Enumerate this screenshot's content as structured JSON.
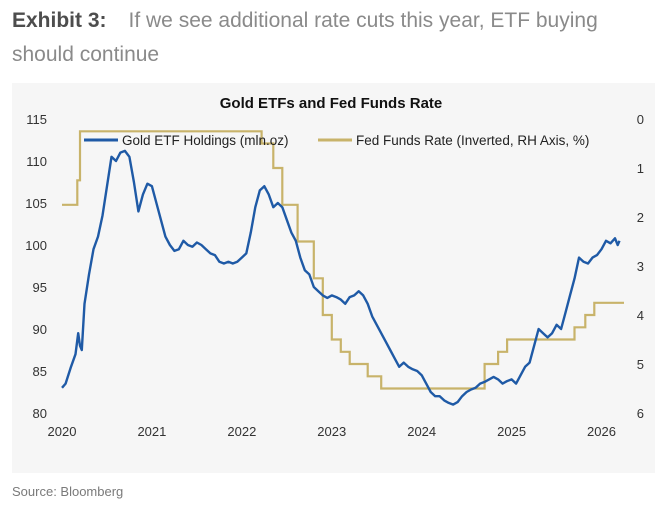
{
  "header": {
    "label": "Exhibit 3:",
    "title": "If we see additional rate cuts this year, ETF buying should continue"
  },
  "footer": {
    "source": "Source: Bloomberg"
  },
  "colors": {
    "gold_etf": "#1f5aa6",
    "fed_funds": "#c8b36a",
    "background": "#f6f6f6",
    "axis_text": "#333333"
  },
  "chart_data": {
    "type": "line",
    "title": "Gold ETFs and Fed Funds Rate",
    "xlabel": "",
    "ylabel": "",
    "xlim": [
      2020.0,
      2026.25
    ],
    "ylim_left": [
      80,
      115
    ],
    "ylim_right_inverted": [
      0,
      6
    ],
    "x_ticks": [
      "2020",
      "2021",
      "2022",
      "2023",
      "2024",
      "2025",
      "2026"
    ],
    "y_left_ticks": [
      "80",
      "85",
      "90",
      "95",
      "100",
      "105",
      "110",
      "115"
    ],
    "y_right_ticks": [
      "0",
      "1",
      "2",
      "3",
      "4",
      "5",
      "6"
    ],
    "legend": "top",
    "grid": false,
    "series": [
      {
        "name": "Gold ETF Holdings (mln.oz)",
        "axis": "left",
        "points": [
          [
            2020.0,
            83.0
          ],
          [
            2020.04,
            83.5
          ],
          [
            2020.1,
            85.5
          ],
          [
            2020.15,
            87.0
          ],
          [
            2020.18,
            89.5
          ],
          [
            2020.2,
            88.0
          ],
          [
            2020.22,
            87.5
          ],
          [
            2020.25,
            93.0
          ],
          [
            2020.3,
            96.5
          ],
          [
            2020.35,
            99.5
          ],
          [
            2020.4,
            101.0
          ],
          [
            2020.45,
            103.5
          ],
          [
            2020.5,
            107.0
          ],
          [
            2020.55,
            110.5
          ],
          [
            2020.6,
            110.0
          ],
          [
            2020.65,
            111.0
          ],
          [
            2020.7,
            111.2
          ],
          [
            2020.75,
            110.5
          ],
          [
            2020.8,
            107.5
          ],
          [
            2020.85,
            104.0
          ],
          [
            2020.9,
            106.0
          ],
          [
            2020.95,
            107.3
          ],
          [
            2021.0,
            107.0
          ],
          [
            2021.05,
            105.0
          ],
          [
            2021.1,
            103.0
          ],
          [
            2021.15,
            101.0
          ],
          [
            2021.2,
            100.0
          ],
          [
            2021.25,
            99.3
          ],
          [
            2021.3,
            99.5
          ],
          [
            2021.35,
            100.5
          ],
          [
            2021.4,
            100.0
          ],
          [
            2021.45,
            99.8
          ],
          [
            2021.5,
            100.3
          ],
          [
            2021.55,
            100.0
          ],
          [
            2021.6,
            99.5
          ],
          [
            2021.65,
            99.0
          ],
          [
            2021.7,
            98.8
          ],
          [
            2021.75,
            98.0
          ],
          [
            2021.8,
            97.8
          ],
          [
            2021.85,
            98.0
          ],
          [
            2021.9,
            97.8
          ],
          [
            2021.95,
            98.0
          ],
          [
            2022.0,
            98.5
          ],
          [
            2022.05,
            99.0
          ],
          [
            2022.1,
            101.5
          ],
          [
            2022.15,
            104.5
          ],
          [
            2022.2,
            106.5
          ],
          [
            2022.25,
            107.0
          ],
          [
            2022.3,
            106.0
          ],
          [
            2022.35,
            104.5
          ],
          [
            2022.4,
            105.0
          ],
          [
            2022.45,
            104.5
          ],
          [
            2022.5,
            103.0
          ],
          [
            2022.55,
            101.5
          ],
          [
            2022.6,
            100.5
          ],
          [
            2022.65,
            98.5
          ],
          [
            2022.7,
            97.0
          ],
          [
            2022.75,
            96.5
          ],
          [
            2022.8,
            95.0
          ],
          [
            2022.85,
            94.5
          ],
          [
            2022.9,
            94.0
          ],
          [
            2022.95,
            93.7
          ],
          [
            2023.0,
            94.0
          ],
          [
            2023.05,
            93.8
          ],
          [
            2023.1,
            93.5
          ],
          [
            2023.15,
            93.0
          ],
          [
            2023.2,
            93.8
          ],
          [
            2023.25,
            94.0
          ],
          [
            2023.3,
            94.5
          ],
          [
            2023.35,
            94.0
          ],
          [
            2023.4,
            93.0
          ],
          [
            2023.45,
            91.5
          ],
          [
            2023.5,
            90.5
          ],
          [
            2023.55,
            89.5
          ],
          [
            2023.6,
            88.5
          ],
          [
            2023.65,
            87.5
          ],
          [
            2023.7,
            86.5
          ],
          [
            2023.75,
            85.5
          ],
          [
            2023.8,
            86.0
          ],
          [
            2023.85,
            85.5
          ],
          [
            2023.9,
            85.2
          ],
          [
            2023.95,
            85.0
          ],
          [
            2024.0,
            84.5
          ],
          [
            2024.05,
            83.5
          ],
          [
            2024.1,
            82.5
          ],
          [
            2024.15,
            82.0
          ],
          [
            2024.2,
            82.0
          ],
          [
            2024.25,
            81.5
          ],
          [
            2024.3,
            81.2
          ],
          [
            2024.35,
            81.0
          ],
          [
            2024.4,
            81.3
          ],
          [
            2024.45,
            82.0
          ],
          [
            2024.5,
            82.5
          ],
          [
            2024.55,
            82.8
          ],
          [
            2024.6,
            83.0
          ],
          [
            2024.65,
            83.5
          ],
          [
            2024.7,
            83.7
          ],
          [
            2024.75,
            84.0
          ],
          [
            2024.8,
            84.3
          ],
          [
            2024.85,
            84.0
          ],
          [
            2024.9,
            83.5
          ],
          [
            2024.95,
            83.8
          ],
          [
            2025.0,
            84.0
          ],
          [
            2025.05,
            83.5
          ],
          [
            2025.1,
            84.5
          ],
          [
            2025.15,
            85.5
          ],
          [
            2025.2,
            86.0
          ],
          [
            2025.25,
            88.0
          ],
          [
            2025.3,
            90.0
          ],
          [
            2025.35,
            89.5
          ],
          [
            2025.4,
            89.0
          ],
          [
            2025.45,
            89.5
          ],
          [
            2025.5,
            90.5
          ],
          [
            2025.55,
            90.0
          ],
          [
            2025.6,
            92.0
          ],
          [
            2025.65,
            94.0
          ],
          [
            2025.7,
            96.0
          ],
          [
            2025.75,
            98.5
          ],
          [
            2025.8,
            98.0
          ],
          [
            2025.85,
            97.8
          ],
          [
            2025.9,
            98.5
          ],
          [
            2025.95,
            98.8
          ],
          [
            2026.0,
            99.5
          ],
          [
            2026.05,
            100.5
          ],
          [
            2026.1,
            100.2
          ],
          [
            2026.15,
            100.8
          ],
          [
            2026.18,
            100.0
          ],
          [
            2026.2,
            100.5
          ]
        ]
      },
      {
        "name": "Fed Funds Rate (Inverted, RH Axis, %)",
        "axis": "right",
        "shape": "step",
        "points": [
          [
            2020.0,
            1.75
          ],
          [
            2020.17,
            1.25
          ],
          [
            2020.2,
            0.25
          ],
          [
            2022.22,
            0.5
          ],
          [
            2022.35,
            1.0
          ],
          [
            2022.45,
            1.75
          ],
          [
            2022.62,
            2.5
          ],
          [
            2022.8,
            3.25
          ],
          [
            2022.9,
            4.0
          ],
          [
            2023.0,
            4.5
          ],
          [
            2023.1,
            4.75
          ],
          [
            2023.2,
            5.0
          ],
          [
            2023.4,
            5.25
          ],
          [
            2023.55,
            5.5
          ],
          [
            2024.7,
            5.0
          ],
          [
            2024.85,
            4.75
          ],
          [
            2024.95,
            4.5
          ],
          [
            2025.7,
            4.25
          ],
          [
            2025.82,
            4.0
          ],
          [
            2025.92,
            3.75
          ],
          [
            2026.25,
            3.75
          ]
        ]
      }
    ]
  }
}
